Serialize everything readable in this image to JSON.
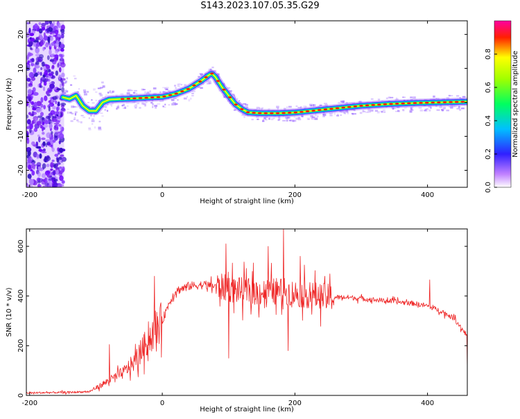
{
  "title": "S143.2023.107.05.35.G29",
  "colors": {
    "snr_line": "#ee2222",
    "axis": "#000000"
  },
  "chart_data": [
    {
      "type": "heatmap",
      "title": "S143.2023.107.05.35.G29",
      "xlabel": "Height of straight line (km)",
      "ylabel": "Frequency (Hz)",
      "xlim": [
        -205,
        460
      ],
      "ylim": [
        -25,
        24
      ],
      "xticks": [
        -200,
        0,
        200,
        400
      ],
      "yticks": [
        -20,
        -10,
        0,
        10,
        20
      ],
      "colorbar": {
        "label": "Normalized spectral amplitude",
        "range": [
          0,
          1
        ],
        "ticks": [
          "0.0",
          "0.2",
          "0.4",
          "0.6",
          "0.8"
        ],
        "colormap": "rainbow"
      },
      "ridge": {
        "x": [
          -150,
          -140,
          -130,
          -120,
          -110,
          -100,
          -90,
          -80,
          -60,
          -40,
          -20,
          0,
          20,
          40,
          60,
          70,
          75,
          80,
          90,
          100,
          110,
          120,
          130,
          150,
          175,
          200,
          225,
          250,
          275,
          300,
          340,
          380,
          420,
          460
        ],
        "y": [
          1.5,
          1.0,
          2.0,
          -1.0,
          -2.5,
          -2.5,
          0.0,
          0.8,
          1.0,
          1.2,
          1.4,
          1.6,
          2.5,
          4.0,
          6.5,
          8.0,
          8.5,
          7.5,
          4.5,
          2.0,
          -0.5,
          -2.0,
          -3.0,
          -3.2,
          -3.2,
          -3.0,
          -2.5,
          -2.0,
          -1.5,
          -1.0,
          -0.5,
          -0.2,
          0.0,
          0.2
        ]
      },
      "noise_region": {
        "x": [
          -205,
          -148
        ],
        "y": [
          -25,
          24
        ]
      }
    },
    {
      "type": "line",
      "xlabel": "Height of straight line (km)",
      "ylabel": "SNR (10 * v/v)",
      "xlim": [
        -205,
        460
      ],
      "ylim": [
        0,
        670
      ],
      "xticks": [
        -200,
        0,
        200,
        400
      ],
      "yticks": [
        0,
        200,
        400,
        600
      ],
      "envelope": {
        "x": [
          -205,
          -150,
          -110,
          -100,
          -80,
          -60,
          -40,
          -20,
          0,
          10,
          20,
          40,
          60,
          80,
          100,
          120,
          150,
          180,
          200,
          220,
          250,
          280,
          300,
          340,
          380,
          400,
          420,
          440,
          460
        ],
        "y": [
          10,
          12,
          15,
          30,
          60,
          90,
          140,
          230,
          300,
          370,
          420,
          440,
          445,
          440,
          430,
          420,
          415,
          420,
          410,
          405,
          395,
          395,
          390,
          380,
          370,
          360,
          340,
          310,
          240
        ]
      },
      "spikes": [
        {
          "x": -80,
          "y": 205
        },
        {
          "x": -12,
          "y": 480
        },
        {
          "x": 96,
          "y": 610
        },
        {
          "x": 100,
          "y": 150
        },
        {
          "x": 160,
          "y": 600
        },
        {
          "x": 183,
          "y": 670
        },
        {
          "x": 190,
          "y": 180
        },
        {
          "x": 208,
          "y": 560
        },
        {
          "x": 245,
          "y": 480
        },
        {
          "x": 403,
          "y": 465
        }
      ]
    }
  ]
}
